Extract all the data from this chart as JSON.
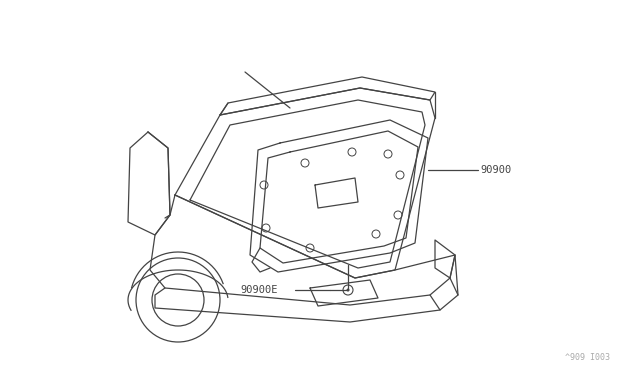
{
  "background_color": "#ffffff",
  "line_color": "#444444",
  "text_color": "#444444",
  "label_90900": "90900",
  "label_90900E": "90900E",
  "diagram_id": "^909 I003",
  "figsize": [
    6.4,
    3.72
  ],
  "dpi": 100
}
